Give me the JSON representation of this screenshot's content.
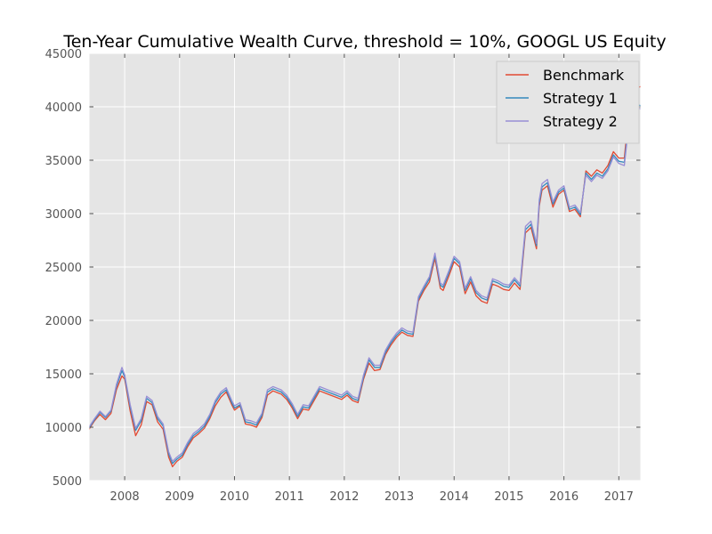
{
  "chart_data": {
    "type": "line",
    "title": "Ten-Year Cumulative Wealth Curve, threshold = 10%, GOOGL US Equity",
    "xlabel": "",
    "ylabel": "",
    "xlim": [
      2007.35,
      2017.4
    ],
    "ylim": [
      5000,
      45000
    ],
    "x_ticks": [
      "2008",
      "2009",
      "2010",
      "2011",
      "2012",
      "2013",
      "2014",
      "2015",
      "2016",
      "2017"
    ],
    "y_ticks": [
      "5000",
      "10000",
      "15000",
      "20000",
      "25000",
      "30000",
      "35000",
      "40000",
      "45000"
    ],
    "grid": true,
    "legend_position": "top-right",
    "x": [
      2007.35,
      2007.45,
      2007.55,
      2007.65,
      2007.75,
      2007.85,
      2007.95,
      2008.0,
      2008.1,
      2008.2,
      2008.3,
      2008.4,
      2008.5,
      2008.6,
      2008.7,
      2008.8,
      2008.87,
      2008.95,
      2009.05,
      2009.15,
      2009.25,
      2009.35,
      2009.45,
      2009.55,
      2009.65,
      2009.75,
      2009.85,
      2009.95,
      2010.0,
      2010.1,
      2010.2,
      2010.3,
      2010.4,
      2010.5,
      2010.6,
      2010.7,
      2010.8,
      2010.85,
      2010.95,
      2011.05,
      2011.15,
      2011.25,
      2011.35,
      2011.45,
      2011.55,
      2011.65,
      2011.75,
      2011.85,
      2011.95,
      2012.05,
      2012.15,
      2012.25,
      2012.35,
      2012.45,
      2012.55,
      2012.65,
      2012.75,
      2012.85,
      2012.95,
      2013.05,
      2013.15,
      2013.25,
      2013.35,
      2013.45,
      2013.55,
      2013.65,
      2013.75,
      2013.8,
      2013.9,
      2014.0,
      2014.1,
      2014.2,
      2014.3,
      2014.4,
      2014.5,
      2014.6,
      2014.7,
      2014.8,
      2014.9,
      2015.0,
      2015.1,
      2015.2,
      2015.3,
      2015.4,
      2015.5,
      2015.55,
      2015.6,
      2015.7,
      2015.8,
      2015.9,
      2016.0,
      2016.1,
      2016.2,
      2016.3,
      2016.4,
      2016.5,
      2016.6,
      2016.7,
      2016.8,
      2016.9,
      2017.0,
      2017.1,
      2017.2,
      2017.3,
      2017.35,
      2017.4
    ],
    "series": [
      {
        "name": "Benchmark",
        "color": "#e24a33",
        "values": [
          9800,
          10600,
          11200,
          10700,
          11300,
          13500,
          14800,
          14500,
          11500,
          9200,
          10200,
          12400,
          12100,
          10500,
          9800,
          7200,
          6300,
          6800,
          7200,
          8200,
          9000,
          9400,
          9900,
          10800,
          12000,
          12800,
          13300,
          12100,
          11600,
          12000,
          10300,
          10200,
          10000,
          10900,
          13000,
          13400,
          13200,
          13100,
          12600,
          11800,
          10800,
          11700,
          11600,
          12500,
          13400,
          13200,
          13000,
          12800,
          12600,
          13000,
          12500,
          12300,
          14500,
          16000,
          15300,
          15400,
          16800,
          17700,
          18400,
          18900,
          18600,
          18500,
          21800,
          22800,
          23600,
          25800,
          23000,
          22800,
          24100,
          25500,
          25000,
          22500,
          23600,
          22300,
          21800,
          21600,
          23400,
          23200,
          22900,
          22800,
          23500,
          22900,
          28200,
          28700,
          26700,
          30700,
          32200,
          32600,
          30600,
          31800,
          32200,
          30200,
          30400,
          29700,
          34000,
          33500,
          34100,
          33800,
          34500,
          35800,
          35200,
          35200,
          40500,
          42000,
          41800,
          41900
        ]
      },
      {
        "name": "Strategy 1",
        "color": "#348abd",
        "values": [
          9900,
          10700,
          11400,
          10900,
          11500,
          13800,
          15300,
          14700,
          11900,
          9700,
          10600,
          12700,
          12300,
          10800,
          10100,
          7500,
          6600,
          7000,
          7400,
          8400,
          9200,
          9600,
          10100,
          11000,
          12300,
          13100,
          13500,
          12300,
          11800,
          12100,
          10500,
          10400,
          10200,
          11100,
          13300,
          13600,
          13400,
          13300,
          12800,
          12000,
          11000,
          11900,
          11800,
          12700,
          13600,
          13400,
          13200,
          13000,
          12800,
          13200,
          12700,
          12500,
          14700,
          16300,
          15600,
          15600,
          17000,
          17900,
          18600,
          19100,
          18800,
          18700,
          22000,
          23000,
          23900,
          26100,
          23300,
          23100,
          24400,
          25800,
          25300,
          22800,
          23900,
          22600,
          22100,
          21900,
          23700,
          23500,
          23200,
          23100,
          23800,
          23200,
          28500,
          29000,
          27000,
          31000,
          32500,
          32900,
          30900,
          32000,
          32400,
          30400,
          30600,
          29900,
          33800,
          33200,
          33800,
          33500,
          34200,
          35500,
          34900,
          34800,
          39500,
          40600,
          40200,
          40100
        ]
      },
      {
        "name": "Strategy 2",
        "color": "#988ed5",
        "values": [
          10000,
          10800,
          11500,
          11000,
          11600,
          14000,
          15600,
          14900,
          12100,
          9900,
          10800,
          12900,
          12500,
          11000,
          10300,
          7700,
          6800,
          7200,
          7600,
          8600,
          9400,
          9800,
          10300,
          11200,
          12500,
          13300,
          13700,
          12500,
          12000,
          12300,
          10700,
          10600,
          10400,
          11300,
          13500,
          13800,
          13600,
          13500,
          13000,
          12200,
          11200,
          12100,
          12000,
          12900,
          13800,
          13600,
          13400,
          13200,
          13000,
          13400,
          12900,
          12700,
          14900,
          16500,
          15800,
          15800,
          17200,
          18100,
          18800,
          19300,
          19000,
          18900,
          22200,
          23200,
          24100,
          26300,
          23500,
          23300,
          24600,
          26000,
          25500,
          23000,
          24100,
          22800,
          22300,
          22100,
          23900,
          23700,
          23400,
          23300,
          24000,
          23400,
          28800,
          29300,
          27200,
          31300,
          32800,
          33200,
          31100,
          32200,
          32600,
          30600,
          30800,
          30100,
          33600,
          33000,
          33600,
          33300,
          34000,
          35300,
          34700,
          34500,
          39200,
          40300,
          39900,
          39800
        ]
      }
    ]
  }
}
